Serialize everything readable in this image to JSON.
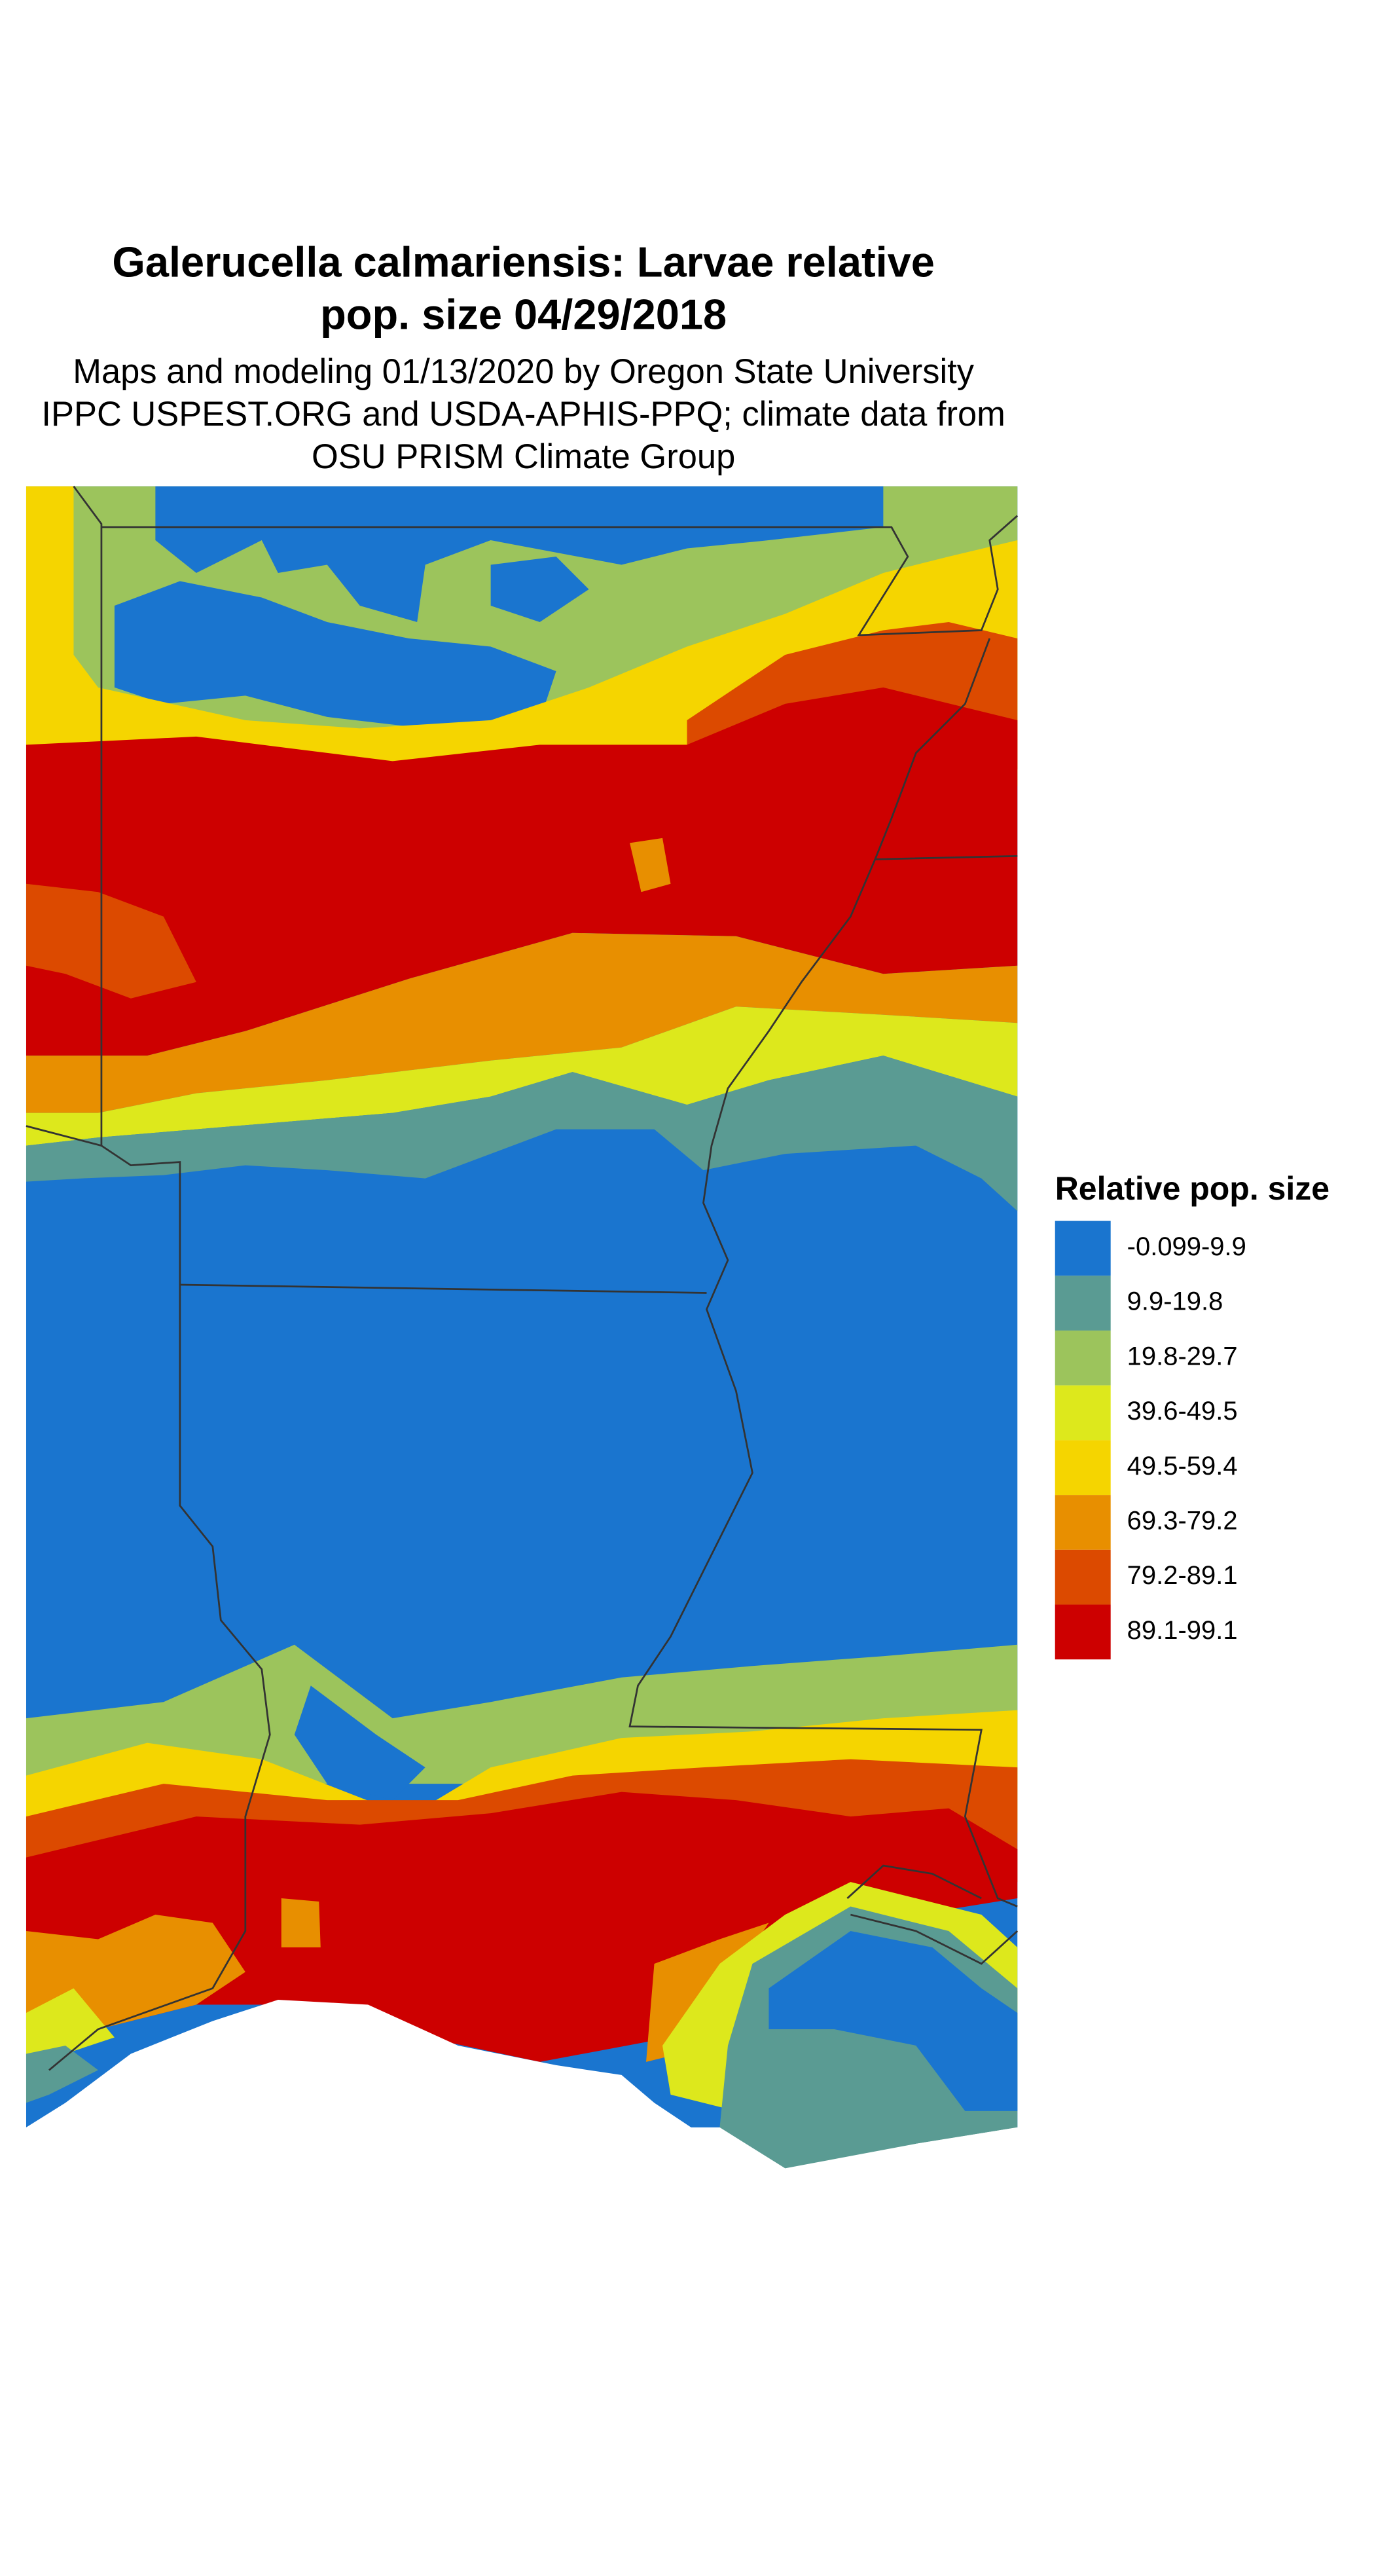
{
  "header": {
    "title_lines": [
      "Galerucella calmariensis: Larvae relative",
      "pop. size 04/29/2018"
    ],
    "subtitle_lines": [
      "Maps and modeling 01/13/2020 by Oregon State University",
      "IPPC USPEST.ORG and USDA-APHIS-PPQ; climate data from",
      "OSU PRISM Climate Group"
    ]
  },
  "legend": {
    "title": "Relative pop. size",
    "items": [
      {
        "label": "-0.099-9.9",
        "color": "#1a75cf"
      },
      {
        "label": "9.9-19.8",
        "color": "#5a9b93"
      },
      {
        "label": "19.8-29.7",
        "color": "#9cc45c"
      },
      {
        "label": "39.6-49.5",
        "color": "#dde81c"
      },
      {
        "label": "49.5-59.4",
        "color": "#f5d500"
      },
      {
        "label": "69.3-79.2",
        "color": "#e88f00"
      },
      {
        "label": "79.2-89.1",
        "color": "#dc4a00"
      },
      {
        "label": "89.1-99.1",
        "color": "#cd0000"
      }
    ]
  }
}
